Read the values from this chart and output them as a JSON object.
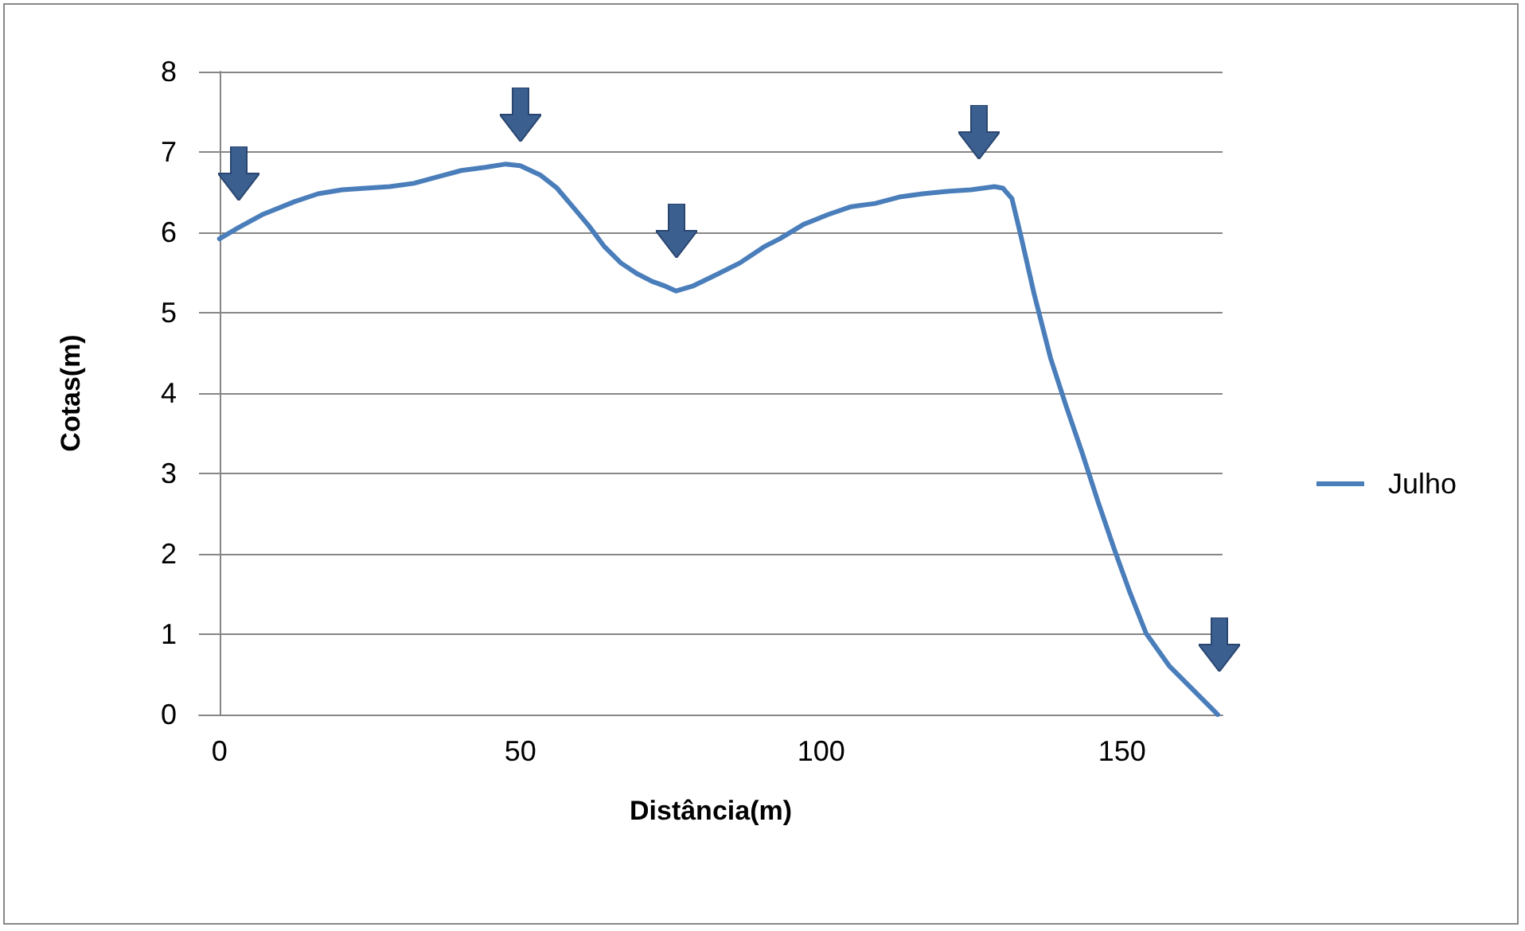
{
  "chart_data": {
    "type": "line",
    "xlabel": "Distância(m)",
    "ylabel": "Cotas(m)",
    "xlim": [
      -3.4,
      166.7
    ],
    "xticks": [
      0,
      50,
      100,
      150
    ],
    "ylim": [
      0,
      8
    ],
    "yticks": [
      0,
      1,
      2,
      3,
      4,
      5,
      6,
      7,
      8
    ],
    "grid": "y",
    "legend": "right",
    "marker": "none",
    "line_style": "solid",
    "x": [
      0,
      3.2,
      7.1,
      12.4,
      16.4,
      20.4,
      24.3,
      28.3,
      32.3,
      36.2,
      40.2,
      44.2,
      47.6,
      50,
      53.4,
      56.1,
      58.7,
      61.4,
      64,
      66.7,
      69.3,
      71.9,
      74.1,
      75.9,
      78.6,
      82.5,
      86.5,
      90.5,
      93.1,
      97.1,
      101.1,
      105,
      109,
      113,
      116.9,
      120.9,
      124.9,
      128.8,
      130.2,
      131.7,
      133.3,
      135.4,
      138.1,
      140.7,
      143.4,
      146,
      148.7,
      151.3,
      154,
      157.9,
      165.9
    ],
    "series": [
      {
        "name": "Julho",
        "color": "#4a7ebb",
        "values": [
          5.92,
          6.06,
          6.22,
          6.38,
          6.48,
          6.53,
          6.55,
          6.57,
          6.61,
          6.69,
          6.77,
          6.81,
          6.85,
          6.83,
          6.71,
          6.55,
          6.32,
          6.08,
          5.82,
          5.62,
          5.49,
          5.39,
          5.33,
          5.27,
          5.33,
          5.47,
          5.62,
          5.82,
          5.92,
          6.1,
          6.22,
          6.32,
          6.36,
          6.44,
          6.48,
          6.51,
          6.53,
          6.57,
          6.55,
          6.42,
          5.92,
          5.23,
          4.44,
          3.84,
          3.25,
          2.65,
          2.06,
          1.52,
          1.01,
          0.6,
          0
        ]
      }
    ]
  }
}
